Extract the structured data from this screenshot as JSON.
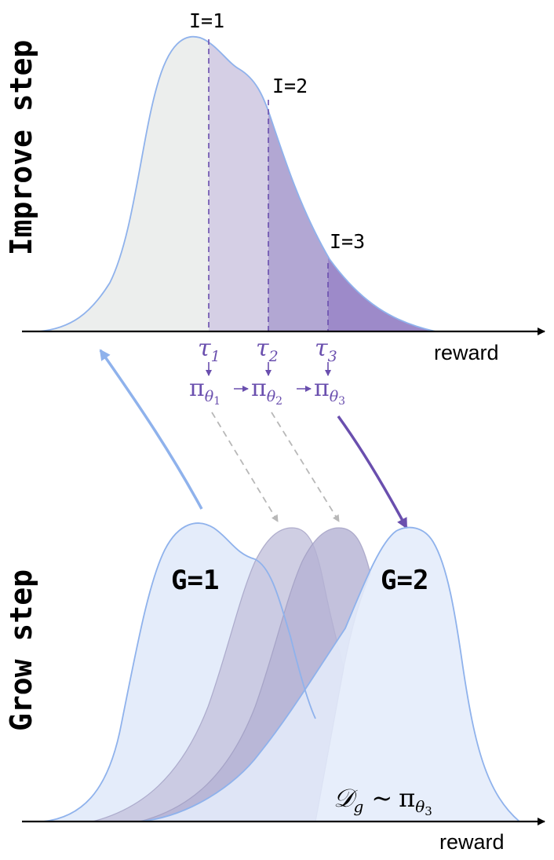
{
  "improve": {
    "title": "Improve step",
    "axis_label": "reward",
    "thresholds": [
      {
        "label": "I=1",
        "tau_base": "τ",
        "tau_sub": "1"
      },
      {
        "label": "I=2",
        "tau_base": "τ",
        "tau_sub": "2"
      },
      {
        "label": "I=3",
        "tau_base": "τ",
        "tau_sub": "3"
      }
    ],
    "policies": [
      {
        "base": "π",
        "sub": "θ",
        "subsub": "1"
      },
      {
        "base": "π",
        "sub": "θ",
        "subsub": "2"
      },
      {
        "base": "π",
        "sub": "θ",
        "subsub": "3"
      }
    ]
  },
  "grow": {
    "title": "Grow step",
    "axis_label": "reward",
    "g1_label": "G=1",
    "g2_label": "G=2",
    "dataset": {
      "base": "𝒟",
      "sub": "g",
      "tilde": "~",
      "pi": "π",
      "pi_sub": "θ",
      "pi_subsub": "3"
    }
  },
  "colors": {
    "curve": "#8fb2ec",
    "gray_fill": "#eceeed",
    "lavender1": "#d5cfe5",
    "lavender2": "#b2a7d3",
    "lavender3": "#9d8ac9",
    "purple": "#6a4fae",
    "grow_blue": "#e4ecfa",
    "grow_gray": "#9a97bd"
  }
}
